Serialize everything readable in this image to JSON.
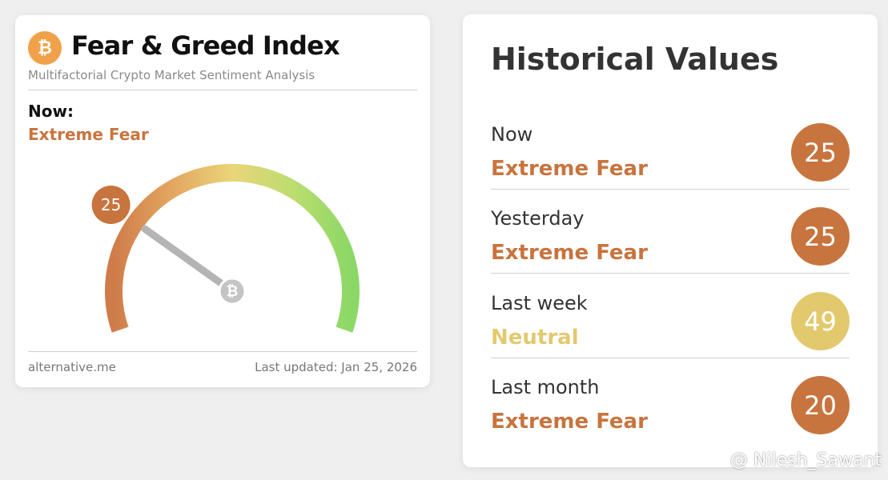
{
  "fear_greed": {
    "title": "Fear & Greed Index",
    "subtitle": "Multifactorial Crypto Market Sentiment Analysis",
    "logo_icon": "bitcoin-icon",
    "now_label": "Now:",
    "now_classification": "Extreme Fear",
    "gauge": {
      "value": 25,
      "value_label": "25",
      "min": 0,
      "max": 100,
      "center_icon": "bitcoin-icon"
    },
    "footer_source": "alternative.me",
    "footer_updated": "Last updated: Jan 25, 2026"
  },
  "historical": {
    "title": "Historical Values",
    "rows": [
      {
        "label": "Now",
        "classification": "Extreme Fear",
        "value": "25",
        "color": "#c8743e"
      },
      {
        "label": "Yesterday",
        "classification": "Extreme Fear",
        "value": "25",
        "color": "#c8743e"
      },
      {
        "label": "Last week",
        "classification": "Neutral",
        "value": "49",
        "color": "#e3c96e"
      },
      {
        "label": "Last month",
        "classification": "Extreme Fear",
        "value": "20",
        "color": "#c8743e"
      }
    ]
  },
  "colors": {
    "extreme_fear": "#c8743e",
    "neutral": "#e3c96e",
    "greed": "#8fd66a"
  },
  "watermark": "@ Nilesh_Sawant"
}
